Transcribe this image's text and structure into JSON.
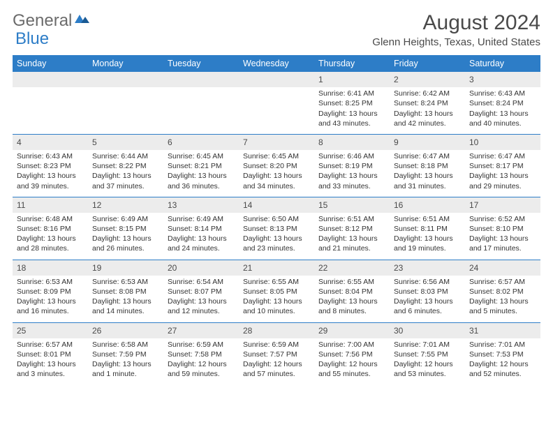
{
  "brand": {
    "general": "General",
    "blue": "Blue"
  },
  "title": "August 2024",
  "location": "Glenn Heights, Texas, United States",
  "colors": {
    "header_bg": "#2d7dc7",
    "header_fg": "#ffffff",
    "daynum_bg": "#ececec",
    "text": "#333333",
    "title": "#4a4a4a"
  },
  "fonts": {
    "title_size": 30,
    "location_size": 15,
    "th_size": 12.5,
    "cell_size": 10.5
  },
  "day_headers": [
    "Sunday",
    "Monday",
    "Tuesday",
    "Wednesday",
    "Thursday",
    "Friday",
    "Saturday"
  ],
  "weeks": [
    [
      {
        "num": "",
        "sunrise": "",
        "sunset": "",
        "daylight1": "",
        "daylight2": ""
      },
      {
        "num": "",
        "sunrise": "",
        "sunset": "",
        "daylight1": "",
        "daylight2": ""
      },
      {
        "num": "",
        "sunrise": "",
        "sunset": "",
        "daylight1": "",
        "daylight2": ""
      },
      {
        "num": "",
        "sunrise": "",
        "sunset": "",
        "daylight1": "",
        "daylight2": ""
      },
      {
        "num": "1",
        "sunrise": "Sunrise: 6:41 AM",
        "sunset": "Sunset: 8:25 PM",
        "daylight1": "Daylight: 13 hours",
        "daylight2": "and 43 minutes."
      },
      {
        "num": "2",
        "sunrise": "Sunrise: 6:42 AM",
        "sunset": "Sunset: 8:24 PM",
        "daylight1": "Daylight: 13 hours",
        "daylight2": "and 42 minutes."
      },
      {
        "num": "3",
        "sunrise": "Sunrise: 6:43 AM",
        "sunset": "Sunset: 8:24 PM",
        "daylight1": "Daylight: 13 hours",
        "daylight2": "and 40 minutes."
      }
    ],
    [
      {
        "num": "4",
        "sunrise": "Sunrise: 6:43 AM",
        "sunset": "Sunset: 8:23 PM",
        "daylight1": "Daylight: 13 hours",
        "daylight2": "and 39 minutes."
      },
      {
        "num": "5",
        "sunrise": "Sunrise: 6:44 AM",
        "sunset": "Sunset: 8:22 PM",
        "daylight1": "Daylight: 13 hours",
        "daylight2": "and 37 minutes."
      },
      {
        "num": "6",
        "sunrise": "Sunrise: 6:45 AM",
        "sunset": "Sunset: 8:21 PM",
        "daylight1": "Daylight: 13 hours",
        "daylight2": "and 36 minutes."
      },
      {
        "num": "7",
        "sunrise": "Sunrise: 6:45 AM",
        "sunset": "Sunset: 8:20 PM",
        "daylight1": "Daylight: 13 hours",
        "daylight2": "and 34 minutes."
      },
      {
        "num": "8",
        "sunrise": "Sunrise: 6:46 AM",
        "sunset": "Sunset: 8:19 PM",
        "daylight1": "Daylight: 13 hours",
        "daylight2": "and 33 minutes."
      },
      {
        "num": "9",
        "sunrise": "Sunrise: 6:47 AM",
        "sunset": "Sunset: 8:18 PM",
        "daylight1": "Daylight: 13 hours",
        "daylight2": "and 31 minutes."
      },
      {
        "num": "10",
        "sunrise": "Sunrise: 6:47 AM",
        "sunset": "Sunset: 8:17 PM",
        "daylight1": "Daylight: 13 hours",
        "daylight2": "and 29 minutes."
      }
    ],
    [
      {
        "num": "11",
        "sunrise": "Sunrise: 6:48 AM",
        "sunset": "Sunset: 8:16 PM",
        "daylight1": "Daylight: 13 hours",
        "daylight2": "and 28 minutes."
      },
      {
        "num": "12",
        "sunrise": "Sunrise: 6:49 AM",
        "sunset": "Sunset: 8:15 PM",
        "daylight1": "Daylight: 13 hours",
        "daylight2": "and 26 minutes."
      },
      {
        "num": "13",
        "sunrise": "Sunrise: 6:49 AM",
        "sunset": "Sunset: 8:14 PM",
        "daylight1": "Daylight: 13 hours",
        "daylight2": "and 24 minutes."
      },
      {
        "num": "14",
        "sunrise": "Sunrise: 6:50 AM",
        "sunset": "Sunset: 8:13 PM",
        "daylight1": "Daylight: 13 hours",
        "daylight2": "and 23 minutes."
      },
      {
        "num": "15",
        "sunrise": "Sunrise: 6:51 AM",
        "sunset": "Sunset: 8:12 PM",
        "daylight1": "Daylight: 13 hours",
        "daylight2": "and 21 minutes."
      },
      {
        "num": "16",
        "sunrise": "Sunrise: 6:51 AM",
        "sunset": "Sunset: 8:11 PM",
        "daylight1": "Daylight: 13 hours",
        "daylight2": "and 19 minutes."
      },
      {
        "num": "17",
        "sunrise": "Sunrise: 6:52 AM",
        "sunset": "Sunset: 8:10 PM",
        "daylight1": "Daylight: 13 hours",
        "daylight2": "and 17 minutes."
      }
    ],
    [
      {
        "num": "18",
        "sunrise": "Sunrise: 6:53 AM",
        "sunset": "Sunset: 8:09 PM",
        "daylight1": "Daylight: 13 hours",
        "daylight2": "and 16 minutes."
      },
      {
        "num": "19",
        "sunrise": "Sunrise: 6:53 AM",
        "sunset": "Sunset: 8:08 PM",
        "daylight1": "Daylight: 13 hours",
        "daylight2": "and 14 minutes."
      },
      {
        "num": "20",
        "sunrise": "Sunrise: 6:54 AM",
        "sunset": "Sunset: 8:07 PM",
        "daylight1": "Daylight: 13 hours",
        "daylight2": "and 12 minutes."
      },
      {
        "num": "21",
        "sunrise": "Sunrise: 6:55 AM",
        "sunset": "Sunset: 8:05 PM",
        "daylight1": "Daylight: 13 hours",
        "daylight2": "and 10 minutes."
      },
      {
        "num": "22",
        "sunrise": "Sunrise: 6:55 AM",
        "sunset": "Sunset: 8:04 PM",
        "daylight1": "Daylight: 13 hours",
        "daylight2": "and 8 minutes."
      },
      {
        "num": "23",
        "sunrise": "Sunrise: 6:56 AM",
        "sunset": "Sunset: 8:03 PM",
        "daylight1": "Daylight: 13 hours",
        "daylight2": "and 6 minutes."
      },
      {
        "num": "24",
        "sunrise": "Sunrise: 6:57 AM",
        "sunset": "Sunset: 8:02 PM",
        "daylight1": "Daylight: 13 hours",
        "daylight2": "and 5 minutes."
      }
    ],
    [
      {
        "num": "25",
        "sunrise": "Sunrise: 6:57 AM",
        "sunset": "Sunset: 8:01 PM",
        "daylight1": "Daylight: 13 hours",
        "daylight2": "and 3 minutes."
      },
      {
        "num": "26",
        "sunrise": "Sunrise: 6:58 AM",
        "sunset": "Sunset: 7:59 PM",
        "daylight1": "Daylight: 13 hours",
        "daylight2": "and 1 minute."
      },
      {
        "num": "27",
        "sunrise": "Sunrise: 6:59 AM",
        "sunset": "Sunset: 7:58 PM",
        "daylight1": "Daylight: 12 hours",
        "daylight2": "and 59 minutes."
      },
      {
        "num": "28",
        "sunrise": "Sunrise: 6:59 AM",
        "sunset": "Sunset: 7:57 PM",
        "daylight1": "Daylight: 12 hours",
        "daylight2": "and 57 minutes."
      },
      {
        "num": "29",
        "sunrise": "Sunrise: 7:00 AM",
        "sunset": "Sunset: 7:56 PM",
        "daylight1": "Daylight: 12 hours",
        "daylight2": "and 55 minutes."
      },
      {
        "num": "30",
        "sunrise": "Sunrise: 7:01 AM",
        "sunset": "Sunset: 7:55 PM",
        "daylight1": "Daylight: 12 hours",
        "daylight2": "and 53 minutes."
      },
      {
        "num": "31",
        "sunrise": "Sunrise: 7:01 AM",
        "sunset": "Sunset: 7:53 PM",
        "daylight1": "Daylight: 12 hours",
        "daylight2": "and 52 minutes."
      }
    ]
  ]
}
